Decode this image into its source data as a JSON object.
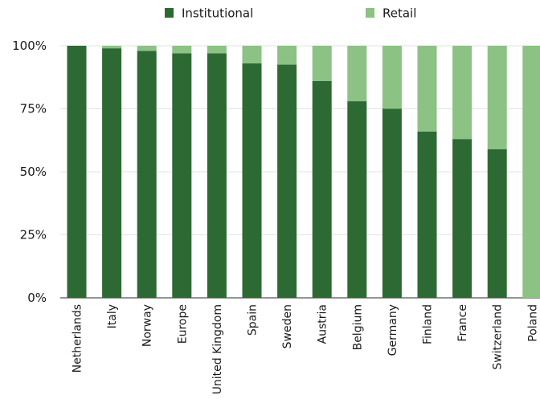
{
  "chart_data": {
    "type": "bar",
    "stacked": true,
    "title": "",
    "xlabel": "",
    "ylabel": "",
    "ylim": [
      0,
      100
    ],
    "yticks": [
      "0%",
      "25%",
      "50%",
      "75%",
      "100%"
    ],
    "grid": true,
    "legend_position": "top",
    "categories": [
      "Netherlands",
      "Italy",
      "Norway",
      "Europe",
      "United Kingdom",
      "Spain",
      "Sweden",
      "Austria",
      "Belgium",
      "Germany",
      "Finland",
      "France",
      "Switzerland",
      "Poland"
    ],
    "series": [
      {
        "name": "Institutional",
        "color": "#2d6a33",
        "values": [
          100,
          99,
          98,
          97,
          97,
          93,
          92.5,
          86,
          78,
          75,
          66,
          63,
          59,
          0
        ]
      },
      {
        "name": "Retail",
        "color": "#8cc284",
        "values": [
          0,
          1,
          2,
          3,
          3,
          7,
          7.5,
          14,
          22,
          25,
          34,
          37,
          41,
          100
        ]
      }
    ]
  }
}
